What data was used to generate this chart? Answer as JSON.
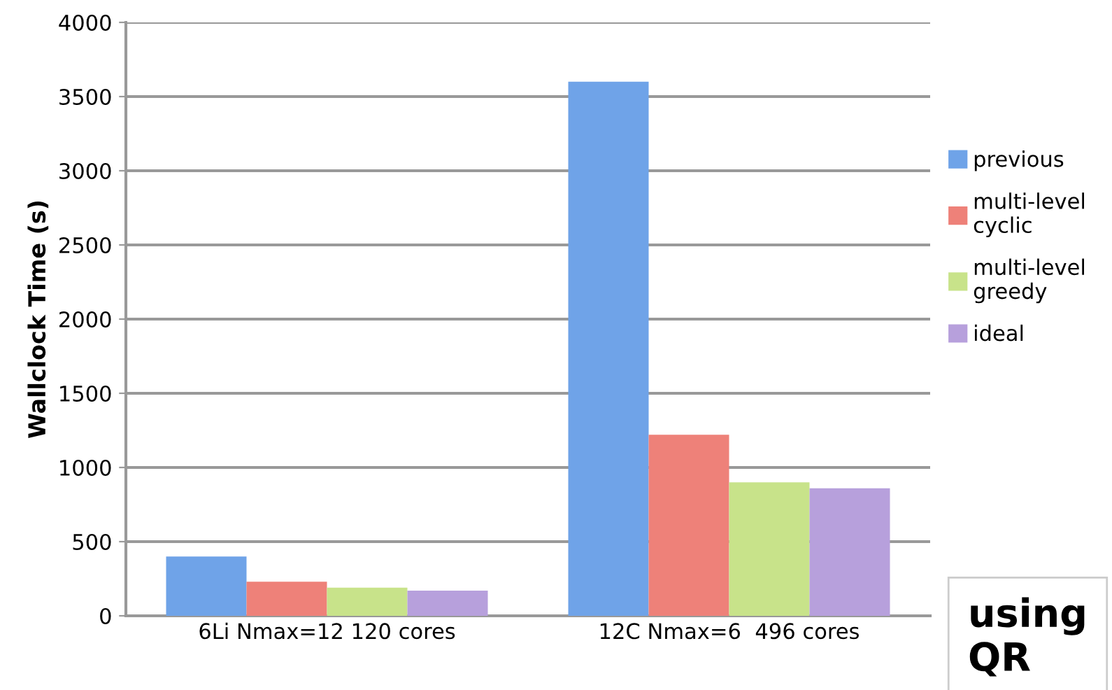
{
  "chart_data": {
    "type": "bar",
    "ylabel": "Wallclock Time (s)",
    "categories": [
      "6Li Nmax=12 120 cores",
      "12C Nmax=6  496 cores"
    ],
    "series": [
      {
        "name": "previous",
        "color": "#6fa3e8",
        "values": [
          400,
          3600
        ]
      },
      {
        "name": "multi-level\ncyclic",
        "color": "#ee8179",
        "values": [
          230,
          1220
        ]
      },
      {
        "name": "multi-level\ngreedy",
        "color": "#c8e38a",
        "values": [
          190,
          900
        ]
      },
      {
        "name": "ideal",
        "color": "#b7a0dc",
        "values": [
          170,
          860
        ]
      }
    ],
    "ylim": [
      0,
      4000
    ],
    "yticks": [
      0,
      500,
      1000,
      1500,
      2000,
      2500,
      3000,
      3500,
      4000
    ],
    "grid": "y",
    "legend": "right",
    "annotations": [
      "using\nQR"
    ]
  }
}
